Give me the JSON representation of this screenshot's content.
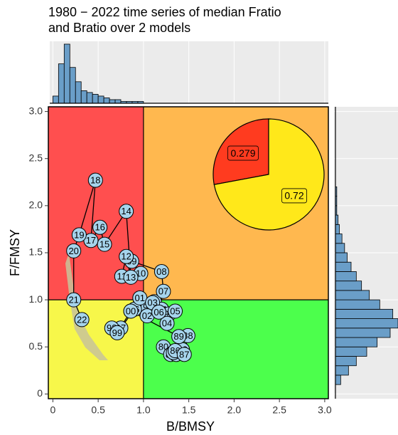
{
  "chart_data": {
    "type": "kobe",
    "title": [
      "1980 − 2022 time series of median Fratio",
      "and Bratio over 2 models"
    ],
    "x_label": "B/BMSY",
    "y_label": "F/FMSY",
    "xlim": [
      -0.05,
      3.04
    ],
    "ylim": [
      -0.05,
      3.05
    ],
    "xticks": [
      0,
      {
        "value": 0.5,
        "label": "0.5"
      },
      {
        "value": 1,
        "label": "1.0"
      },
      {
        "value": 1.5,
        "label": "1.5"
      },
      {
        "value": 2,
        "label": "2.0"
      },
      {
        "value": 2.5,
        "label": "2.5"
      },
      {
        "value": 3,
        "label": "3.0"
      }
    ],
    "yticks": [
      0,
      {
        "value": 0.5,
        "label": "0.5"
      },
      {
        "value": 1,
        "label": "1.0"
      },
      {
        "value": 1.5,
        "label": "1.5"
      },
      {
        "value": 2,
        "label": "2.0"
      },
      {
        "value": 2.5,
        "label": "2.5"
      },
      {
        "value": 3,
        "label": "3.0"
      }
    ],
    "reference": {
      "x": 1,
      "y": 1
    },
    "quadrant_colors": {
      "top_left": "#ff4f4f",
      "top_right": "#ffb84f",
      "bottom_left": "#f7f74a",
      "bottom_right": "#4cff4c"
    },
    "point_color": "#a6d4ec",
    "labels": [
      "80",
      "81",
      "82",
      "83",
      "84",
      "85",
      "86",
      "87",
      "88",
      "89",
      "90",
      "91",
      "92",
      "93",
      "94",
      "95",
      "96",
      "97",
      "98",
      "99",
      "00",
      "01",
      "02",
      "03",
      "04",
      "05",
      "06",
      "07",
      "08",
      "09",
      "10",
      "11",
      "12",
      "13",
      "14",
      "15",
      "16",
      "17",
      "18",
      "19",
      "20",
      "21",
      "22"
    ],
    "x": [
      1.22,
      1.3,
      1.4,
      1.43,
      1.36,
      1.33,
      1.35,
      1.45,
      1.49,
      1.39,
      0.86,
      0.96,
      1.05,
      1.12,
      1.2,
      1.28,
      0.9,
      0.75,
      0.65,
      0.71,
      0.86,
      0.96,
      1.04,
      1.1,
      1.26,
      1.35,
      1.17,
      1.22,
      1.2,
      0.87,
      0.97,
      0.76,
      0.81,
      0.86,
      0.81,
      0.57,
      0.52,
      0.42,
      0.47,
      0.29,
      0.23,
      0.23,
      0.32
    ],
    "y": [
      0.5,
      0.42,
      0.44,
      0.47,
      0.42,
      0.44,
      0.46,
      0.42,
      0.62,
      0.61,
      0.88,
      0.95,
      0.92,
      0.98,
      0.9,
      0.85,
      0.9,
      0.7,
      0.7,
      0.65,
      0.88,
      1.02,
      0.83,
      0.97,
      0.75,
      0.88,
      0.87,
      1.09,
      1.3,
      1.41,
      1.28,
      1.25,
      1.46,
      1.24,
      1.94,
      1.59,
      1.77,
      1.63,
      2.27,
      1.69,
      1.52,
      1.0,
      0.79
    ],
    "pie": {
      "values": [
        0.279,
        0.72
      ],
      "colors": [
        "#ff3b1f",
        "#ffe81a"
      ]
    },
    "hist_x": {
      "color": "#6a9ec8",
      "bins": [
        0,
        0.0625,
        0.125,
        0.1875,
        0.25,
        0.3125,
        0.375,
        0.4375,
        0.5,
        0.5625,
        0.625,
        0.6875,
        0.75,
        0.8125,
        0.875,
        0.9375,
        1.0
      ],
      "counts": [
        4,
        22,
        33,
        20,
        12,
        7,
        6,
        5,
        4,
        3,
        2,
        2,
        1,
        1,
        1,
        1
      ]
    },
    "hist_y": {
      "color": "#6a9ec8",
      "bins": [
        0.1,
        0.2,
        0.3,
        0.4,
        0.5,
        0.6,
        0.7,
        0.8,
        0.9,
        1.0,
        1.1,
        1.2,
        1.3,
        1.4,
        1.5,
        1.6,
        1.7,
        1.8,
        1.9,
        2.0,
        2.1,
        2.2
      ],
      "counts": [
        4,
        10,
        16,
        24,
        32,
        42,
        48,
        44,
        34,
        26,
        20,
        16,
        12,
        9,
        7,
        5,
        3,
        2,
        1,
        1,
        1
      ]
    }
  }
}
